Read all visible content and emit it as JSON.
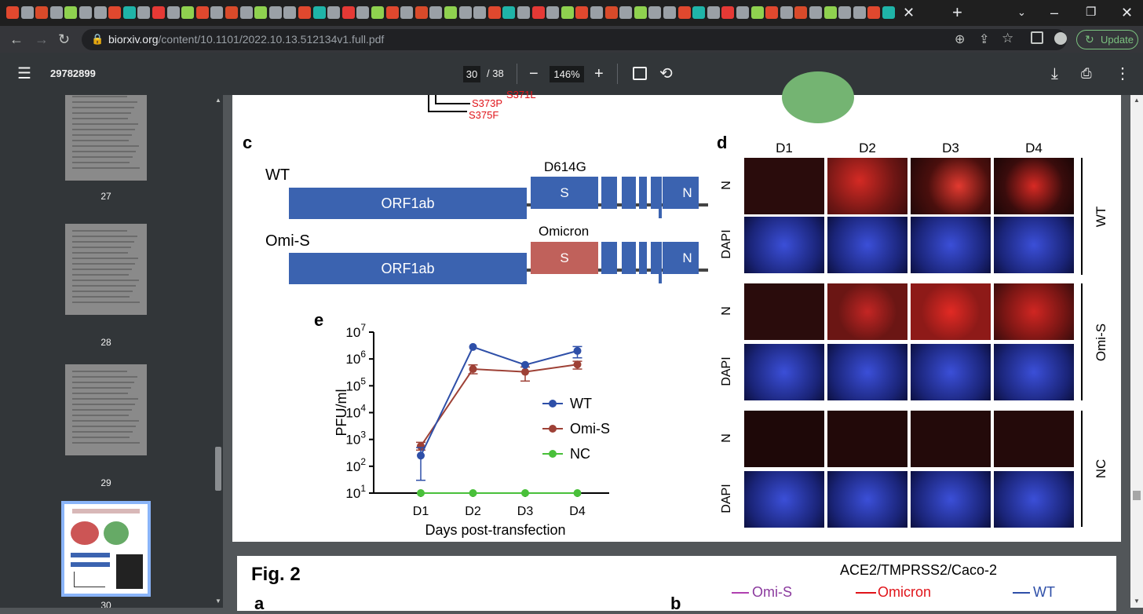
{
  "browser": {
    "url_host": "biorxiv.org",
    "url_path": "/content/10.1101/2022.10.13.512134v1.full.pdf",
    "update_label": "Update"
  },
  "pdf": {
    "title": "29782899",
    "current_page": "30",
    "total_pages": "/ 38",
    "zoom": "146%"
  },
  "thumbnails": [
    {
      "label": "27"
    },
    {
      "label": "28"
    },
    {
      "label": "29"
    },
    {
      "label": "30"
    }
  ],
  "figure": {
    "top_mutations": [
      "S373P",
      "S375F"
    ],
    "panel_c": {
      "label": "c",
      "wt_label": "WT",
      "omis_label": "Omi-S",
      "orf_label": "ORF1ab",
      "s_label": "S",
      "n_label": "N",
      "d614g_label": "D614G",
      "omicron_label": "Omicron"
    },
    "panel_d": {
      "label": "d",
      "columns": [
        "D1",
        "D2",
        "D3",
        "D4"
      ],
      "row_labels": [
        "N",
        "DAPI",
        "N",
        "DAPI",
        "N",
        "DAPI"
      ],
      "group_labels": [
        "WT",
        "Omi-S",
        "NC"
      ]
    },
    "panel_e": {
      "label": "e",
      "ylabel": "PFU/ml",
      "xlabel": "Days post-transfection",
      "y_tick_base": "10",
      "y_tick_exps": [
        "7",
        "6",
        "5",
        "4",
        "3",
        "2",
        "1"
      ],
      "x_ticks": [
        "D1",
        "D2",
        "D3",
        "D4"
      ],
      "legend": [
        "WT",
        "Omi-S",
        "NC"
      ]
    }
  },
  "chart_data": {
    "type": "line",
    "x": [
      "D1",
      "D2",
      "D3",
      "D4"
    ],
    "series": [
      {
        "name": "WT",
        "color": "#2e4fa8",
        "values": [
          250,
          2800000,
          600000,
          2000000
        ],
        "err_low": [
          30,
          2800000,
          600000,
          1100000
        ],
        "err_high": [
          500,
          2800000,
          600000,
          2900000
        ]
      },
      {
        "name": "Omi-S",
        "color": "#9e4136",
        "values": [
          560,
          420000,
          330000,
          620000
        ],
        "err_low": [
          400,
          280000,
          150000,
          420000
        ],
        "err_high": [
          780,
          600000,
          500000,
          820000
        ]
      },
      {
        "name": "NC",
        "color": "#49c03a",
        "values": [
          10,
          10,
          10,
          10
        ]
      }
    ],
    "xlabel": "Days post-transfection",
    "ylabel": "PFU/ml",
    "yscale": "log",
    "ylim": [
      10,
      10000000
    ],
    "legend_position": "right"
  },
  "page2": {
    "fig_label": "Fig. 2",
    "title": "ACE2/TMPRSS2/Caco-2",
    "legend": [
      "Omi-S",
      "Omicron",
      "WT"
    ],
    "panel_a": "a",
    "panel_b": "b"
  }
}
